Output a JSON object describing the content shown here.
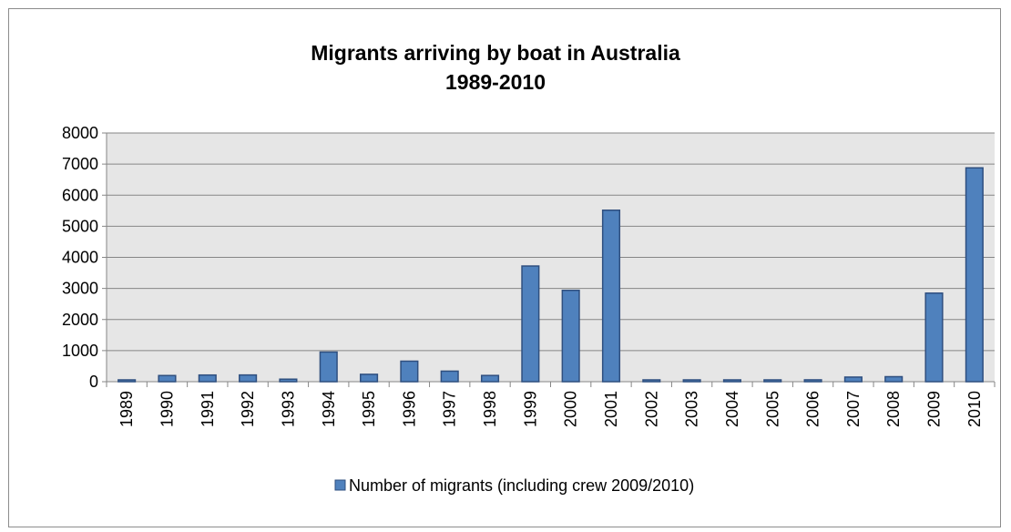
{
  "chart_data": {
    "type": "bar",
    "title": [
      "Migrants arriving by boat in Australia",
      "1989-2010"
    ],
    "xlabel": "",
    "ylabel": "",
    "ylim": [
      0,
      8000
    ],
    "yticks": [
      0,
      1000,
      2000,
      3000,
      4000,
      5000,
      6000,
      7000,
      8000
    ],
    "grid": true,
    "legend_position": "bottom",
    "categories": [
      "1989",
      "1990",
      "1991",
      "1992",
      "1993",
      "1994",
      "1995",
      "1996",
      "1997",
      "1998",
      "1999",
      "2000",
      "2001",
      "2002",
      "2003",
      "2004",
      "2005",
      "2006",
      "2007",
      "2008",
      "2009",
      "2010"
    ],
    "series": [
      {
        "name": "Number of migrants (including crew 2009/2010)",
        "color": "#4f81bd",
        "values": [
          26,
          198,
          214,
          216,
          81,
          953,
          237,
          660,
          339,
          200,
          3721,
          2939,
          5516,
          1,
          53,
          15,
          11,
          60,
          148,
          161,
          2849,
          6879
        ]
      }
    ],
    "plot_background": "#e6e6e6",
    "bar_border_color": "#2f4f7f"
  }
}
